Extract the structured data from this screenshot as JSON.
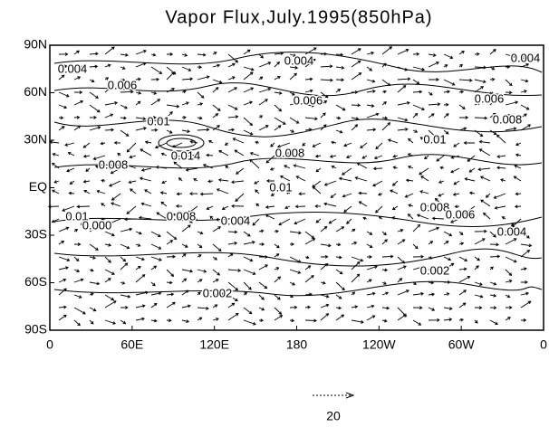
{
  "title": "Vapor Flux,July.1995(850hPa)",
  "y_axis_labels": [
    "90N",
    "60N",
    "30N",
    "EQ",
    "30S",
    "60S",
    "90S"
  ],
  "x_axis_labels": [
    "0",
    "60E",
    "120E",
    "180",
    "120W",
    "60W",
    "0"
  ],
  "contour_labels": [
    "0.004",
    "0.006",
    "0.004",
    "0.004",
    "0.006",
    "0.006",
    "0.008",
    "0.01",
    "0.014",
    "0.008",
    "0.008",
    "0.01",
    "0.01",
    "0.01",
    "0.000",
    "0.008",
    "0.004",
    "0.008",
    "0.006",
    "0.004",
    "0.002",
    "0.002"
  ],
  "reference_vector": {
    "label": "20"
  }
}
